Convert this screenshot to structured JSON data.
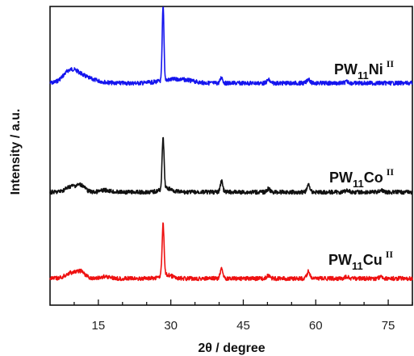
{
  "chart_data": {
    "type": "line",
    "xlabel": "2θ / degree",
    "ylabel": "Intensity / a.u.",
    "xlim": [
      5,
      80
    ],
    "xticks": [
      15,
      30,
      45,
      60,
      75
    ],
    "yticks_shown": false,
    "grid": false,
    "series": [
      {
        "name": "PW11NiII",
        "label": {
          "base": "PW",
          "sub": "11",
          "element": "Ni",
          "sup": "II"
        },
        "color": "#1515ee",
        "baseline": 0.0,
        "peaks": [
          {
            "x": 9.0,
            "y": 0.22,
            "w": 1.4
          },
          {
            "x": 11.0,
            "y": 0.12,
            "w": 1.5
          },
          {
            "x": 13.5,
            "y": 0.06,
            "w": 2.0
          },
          {
            "x": 28.4,
            "y": 1.55,
            "w": 0.18
          },
          {
            "x": 30.0,
            "y": 0.06,
            "w": 2.5
          },
          {
            "x": 33.0,
            "y": 0.04,
            "w": 2.0
          },
          {
            "x": 40.5,
            "y": 0.12,
            "w": 0.25
          },
          {
            "x": 50.2,
            "y": 0.07,
            "w": 0.3
          },
          {
            "x": 58.5,
            "y": 0.09,
            "w": 0.3
          },
          {
            "x": 66.5,
            "y": 0.03,
            "w": 0.4
          }
        ]
      },
      {
        "name": "PW11CoII",
        "label": {
          "base": "PW",
          "sub": "11",
          "element": "Co",
          "sup": "II"
        },
        "color": "#111111",
        "baseline": 0.0,
        "peaks": [
          {
            "x": 9.5,
            "y": 0.12,
            "w": 1.2
          },
          {
            "x": 11.5,
            "y": 0.12,
            "w": 0.8
          },
          {
            "x": 16.5,
            "y": 0.04,
            "w": 1.0
          },
          {
            "x": 28.4,
            "y": 1.05,
            "w": 0.2
          },
          {
            "x": 29.0,
            "y": 0.08,
            "w": 1.2
          },
          {
            "x": 40.5,
            "y": 0.23,
            "w": 0.25
          },
          {
            "x": 50.2,
            "y": 0.07,
            "w": 0.3
          },
          {
            "x": 58.5,
            "y": 0.15,
            "w": 0.3
          },
          {
            "x": 66.5,
            "y": 0.04,
            "w": 0.4
          },
          {
            "x": 73.5,
            "y": 0.04,
            "w": 0.4
          }
        ]
      },
      {
        "name": "PW11CuII",
        "label": {
          "base": "PW",
          "sub": "11",
          "element": "Cu",
          "sup": "II"
        },
        "color": "#ee1111",
        "baseline": 0.0,
        "peaks": [
          {
            "x": 9.5,
            "y": 0.12,
            "w": 1.2
          },
          {
            "x": 11.5,
            "y": 0.12,
            "w": 0.8
          },
          {
            "x": 16.5,
            "y": 0.04,
            "w": 1.0
          },
          {
            "x": 28.4,
            "y": 1.05,
            "w": 0.2
          },
          {
            "x": 29.0,
            "y": 0.08,
            "w": 1.2
          },
          {
            "x": 40.5,
            "y": 0.23,
            "w": 0.25
          },
          {
            "x": 50.2,
            "y": 0.07,
            "w": 0.3
          },
          {
            "x": 58.5,
            "y": 0.15,
            "w": 0.3
          },
          {
            "x": 66.5,
            "y": 0.04,
            "w": 0.4
          },
          {
            "x": 73.5,
            "y": 0.04,
            "w": 0.4
          }
        ]
      }
    ]
  }
}
